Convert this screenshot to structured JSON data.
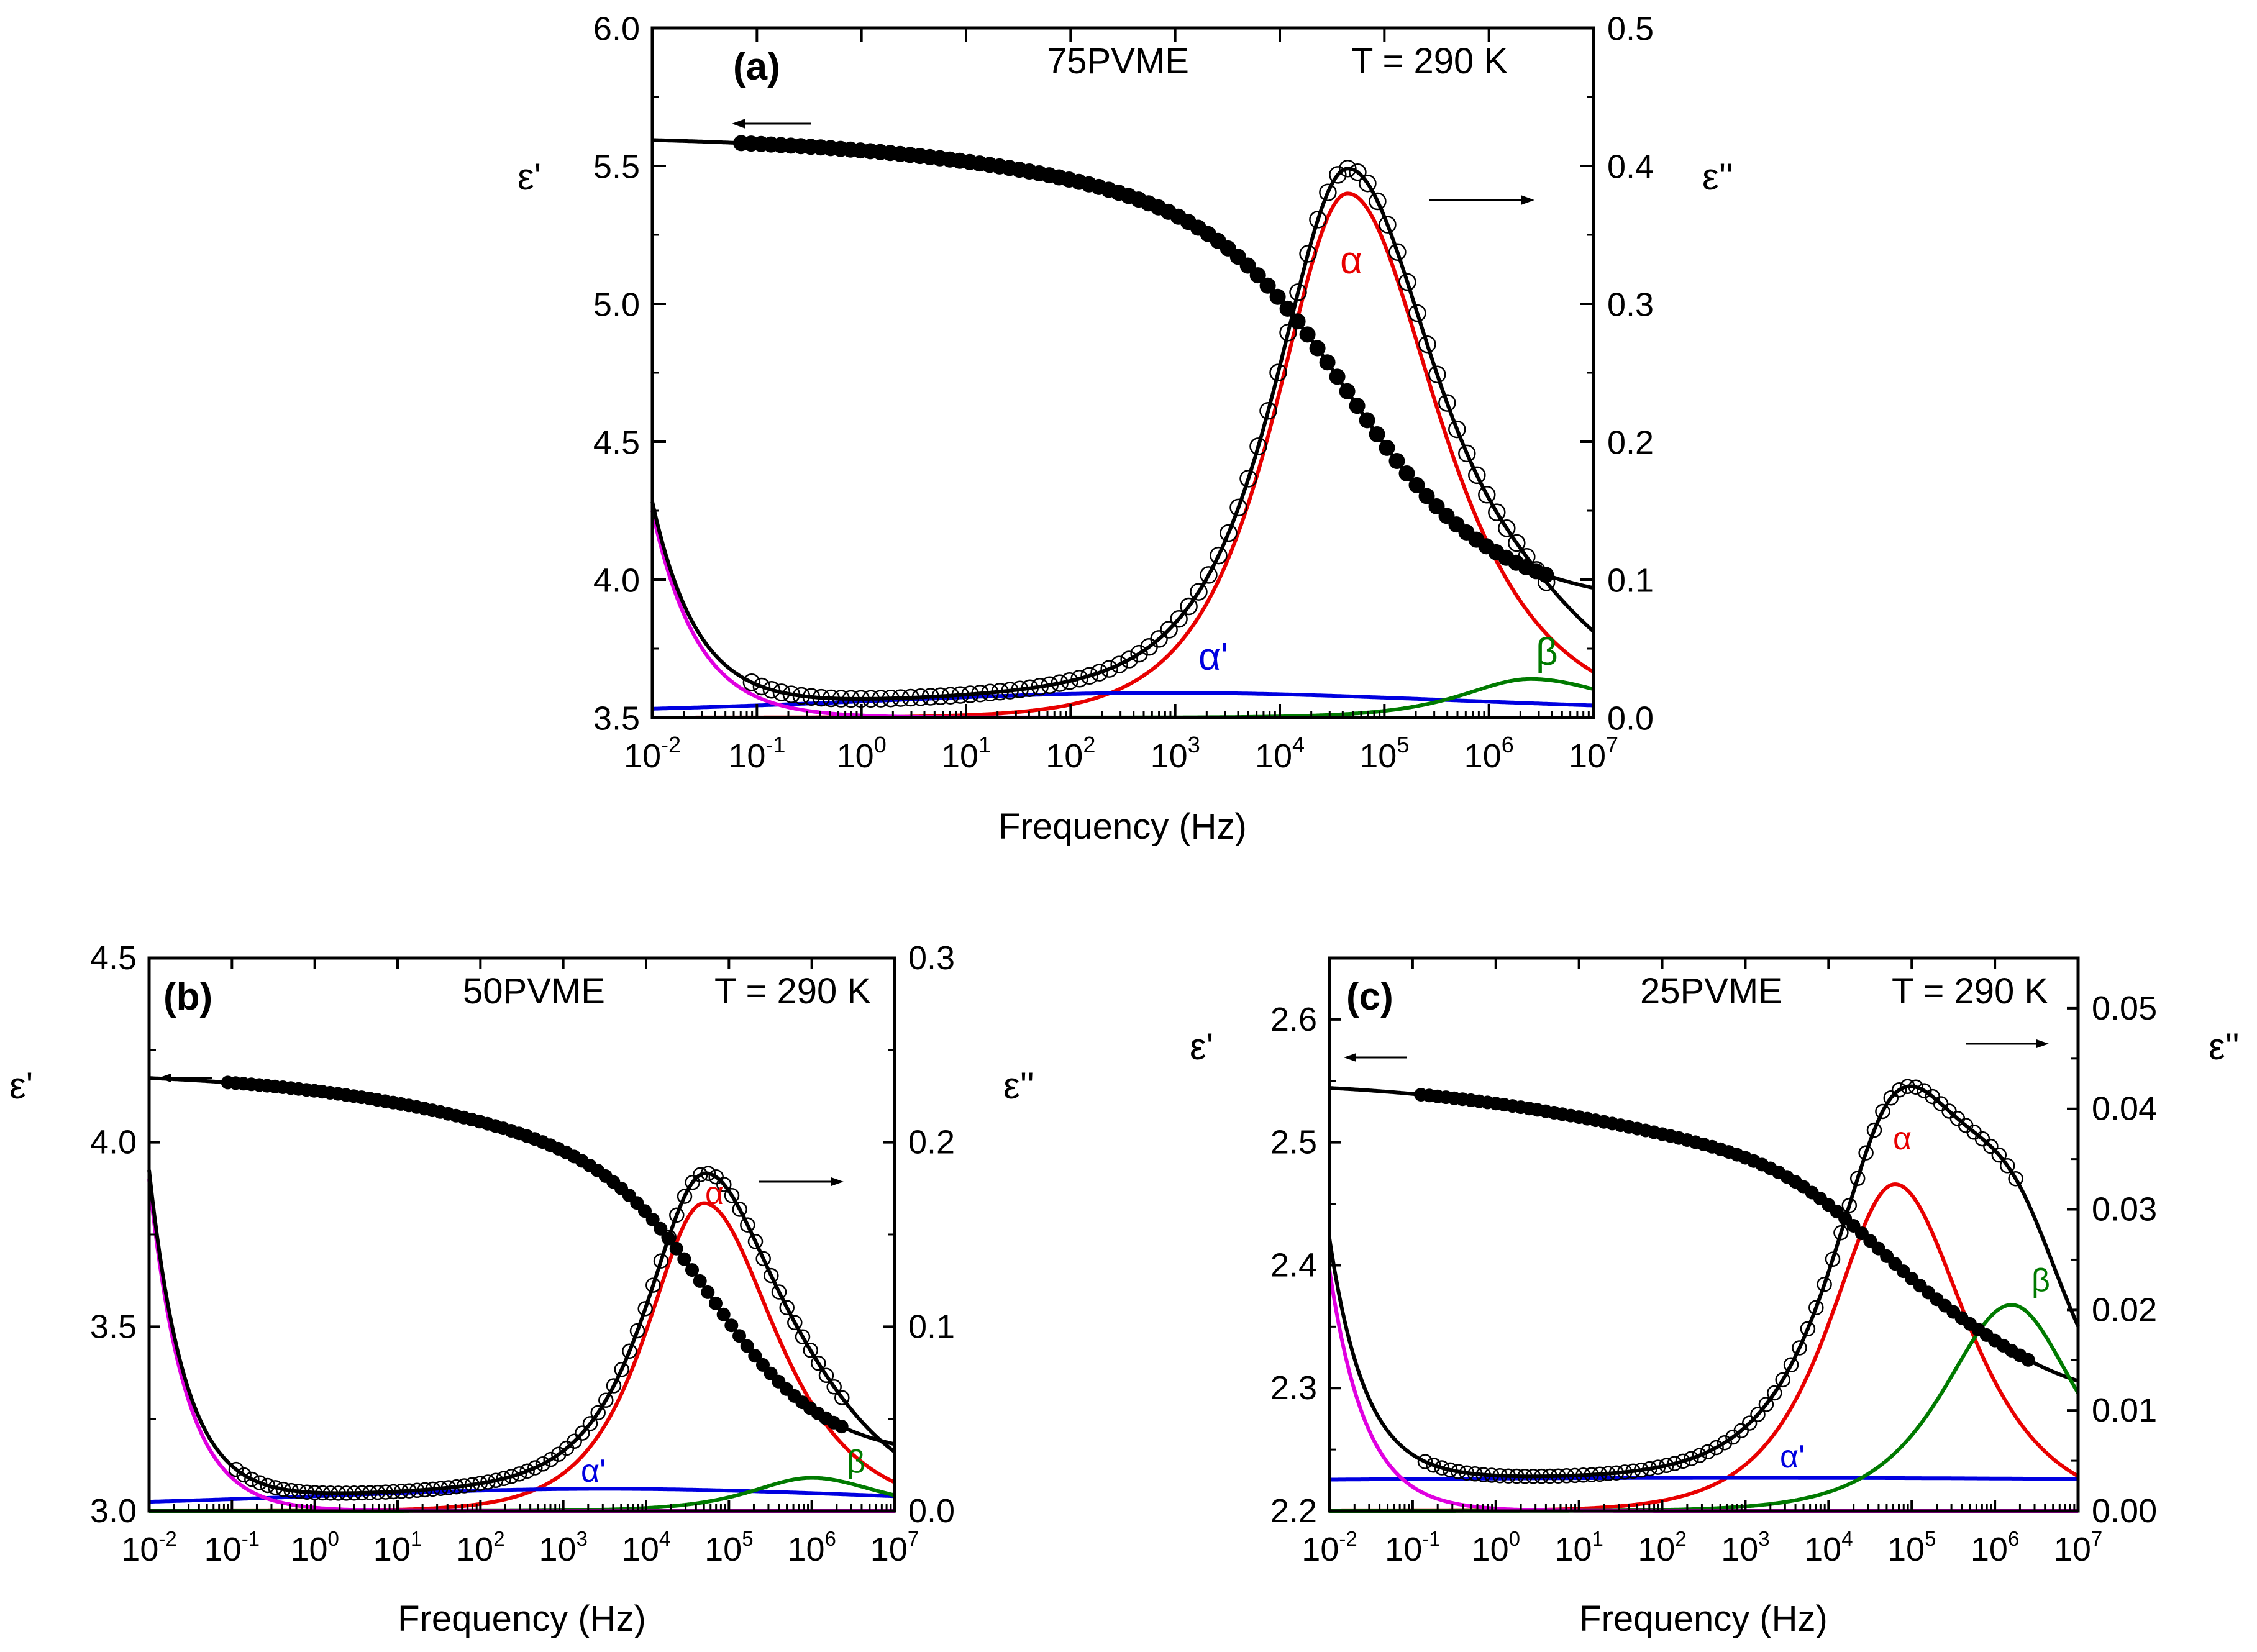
{
  "figure": {
    "xlabel": "Frequency (Hz)"
  },
  "chart_data": [
    {
      "id": "a",
      "type": "line",
      "panel_label": "(a)",
      "sample": "75PVME",
      "temperature": "T = 290 K",
      "xlabel": "Frequency (Hz)",
      "ylabel_left": "ε'",
      "ylabel_right": "ε''",
      "xscale": "log",
      "xlim_log10": [
        -2,
        7
      ],
      "x_ticks": [
        "-2",
        "-1",
        "0",
        "1",
        "2",
        "3",
        "4",
        "5",
        "6",
        "7"
      ],
      "ylim_left": [
        3.5,
        6.0
      ],
      "yticks_left": [
        "3.5",
        "4.0",
        "4.5",
        "5.0",
        "5.5",
        "6.0"
      ],
      "ylim_right": [
        0.0,
        0.5
      ],
      "yticks_right": [
        "0.0",
        "0.1",
        "0.2",
        "0.3",
        "0.4",
        "0.5"
      ],
      "colors": {
        "black": "#000000",
        "magenta": "#e000e0",
        "red": "#e80000",
        "blue": "#0000e0",
        "green": "#007a00"
      },
      "eps1_model": {
        "base": 3.9,
        "steps": [
          {
            "delta": 1.25,
            "log_tau": -4.65,
            "a": 0.7
          },
          {
            "delta": 0.4,
            "log_tau": -2.9,
            "a": 0.28
          },
          {
            "delta": 0.06,
            "log_tau": -6.4,
            "a": 0.75
          }
        ]
      },
      "eps1_points_range_log10": [
        -1.15,
        6.55
      ],
      "eps2_conductivity": {
        "A": 0.0015,
        "n": 1.0
      },
      "eps2_components": [
        {
          "name": "α",
          "amp": 0.38,
          "log_fpeak": 4.65,
          "hw_low": 0.85,
          "hw_high": 1.05,
          "color": "red"
        },
        {
          "name": "α'",
          "amp": 0.018,
          "log_fpeak": 2.9,
          "hw_low": 4.0,
          "hw_high": 4.2,
          "color": "blue"
        },
        {
          "name": "β",
          "amp": 0.028,
          "log_fpeak": 6.4,
          "hw_low": 0.8,
          "hw_high": 1.0,
          "color": "green"
        }
      ],
      "eps2_points_range_log10": [
        -1.05,
        6.55
      ],
      "labels": {
        "alpha": "α",
        "alpha_prime": "α'",
        "beta": "β"
      }
    },
    {
      "id": "b",
      "type": "line",
      "panel_label": "(b)",
      "sample": "50PVME",
      "temperature": "T = 290 K",
      "xlabel": "Frequency (Hz)",
      "ylabel_left": "ε'",
      "ylabel_right": "ε''",
      "xscale": "log",
      "xlim_log10": [
        -2,
        7
      ],
      "x_ticks": [
        "-2",
        "-1",
        "0",
        "1",
        "2",
        "3",
        "4",
        "5",
        "6",
        "7"
      ],
      "ylim_left": [
        3.0,
        4.5
      ],
      "yticks_left": [
        "3.0",
        "3.5",
        "4.0",
        "4.5"
      ],
      "ylim_right": [
        0.0,
        0.3
      ],
      "yticks_right": [
        "0.0",
        "0.1",
        "0.2",
        "0.3"
      ],
      "colors": {
        "black": "#000000",
        "magenta": "#e000e0",
        "red": "#e80000",
        "blue": "#0000e0",
        "green": "#007a00"
      },
      "eps1_model": {
        "base": 3.14,
        "steps": [
          {
            "delta": 0.7,
            "log_tau": -4.75,
            "a": 0.7
          },
          {
            "delta": 0.3,
            "log_tau": -2.5,
            "a": 0.28
          },
          {
            "delta": 0.05,
            "log_tau": -6.0,
            "a": 0.75
          }
        ]
      },
      "eps1_points_range_log10": [
        -1.05,
        6.45
      ],
      "eps2_conductivity": {
        "A": 0.0018,
        "n": 1.0
      },
      "eps2_components": [
        {
          "name": "α",
          "amp": 0.167,
          "log_fpeak": 4.7,
          "hw_low": 0.85,
          "hw_high": 1.05,
          "color": "red"
        },
        {
          "name": "α'",
          "amp": 0.012,
          "log_fpeak": 3.5,
          "hw_low": 5.0,
          "hw_high": 5.0,
          "color": "blue"
        },
        {
          "name": "β",
          "amp": 0.018,
          "log_fpeak": 6.0,
          "hw_low": 0.9,
          "hw_high": 1.0,
          "color": "green"
        }
      ],
      "eps2_points_range_log10": [
        -0.95,
        6.45
      ],
      "labels": {
        "alpha": "α",
        "alpha_prime": "α'",
        "beta": "β"
      }
    },
    {
      "id": "c",
      "type": "line",
      "panel_label": "(c)",
      "sample": "25PVME",
      "temperature": "T = 290 K",
      "xlabel": "Frequency (Hz)",
      "ylabel_left": "ε'",
      "ylabel_right": "ε''",
      "xscale": "log",
      "xlim_log10": [
        -2,
        7
      ],
      "x_ticks": [
        "-2",
        "-1",
        "0",
        "1",
        "2",
        "3",
        "4",
        "5",
        "6",
        "7"
      ],
      "ylim_left": [
        2.2,
        2.65
      ],
      "yticks_left": [
        "2.2",
        "2.3",
        "2.4",
        "2.5",
        "2.6"
      ],
      "ylim_right": [
        0.0,
        0.055
      ],
      "yticks_right": [
        "0.00",
        "0.01",
        "0.02",
        "0.03",
        "0.04",
        "0.05"
      ],
      "colors": {
        "black": "#000000",
        "magenta": "#e000e0",
        "red": "#e80000",
        "blue": "#0000e0",
        "green": "#007a00"
      },
      "eps1_model": {
        "base": 2.29,
        "steps": [
          {
            "delta": 0.13,
            "log_tau": -4.5,
            "a": 0.7
          },
          {
            "delta": 0.07,
            "log_tau": -1.5,
            "a": 0.3
          },
          {
            "delta": 0.06,
            "log_tau": -6.2,
            "a": 0.75
          }
        ]
      },
      "eps1_points_range_log10": [
        -0.9,
        6.4
      ],
      "eps2_conductivity": {
        "A": 0.00024,
        "n": 1.0
      },
      "eps2_components": [
        {
          "name": "α",
          "amp": 0.0325,
          "log_fpeak": 4.8,
          "hw_low": 0.95,
          "hw_high": 1.05,
          "color": "red"
        },
        {
          "name": "α'",
          "amp": 0.0033,
          "log_fpeak": 3.0,
          "hw_low": 20.0,
          "hw_high": 20.0,
          "color": "blue"
        },
        {
          "name": "β",
          "amp": 0.0205,
          "log_fpeak": 6.2,
          "hw_low": 1.0,
          "hw_high": 0.95,
          "color": "green"
        }
      ],
      "eps2_points_range_log10": [
        -0.85,
        6.3
      ],
      "labels": {
        "alpha": "α",
        "alpha_prime": "α'",
        "beta": "β"
      }
    }
  ]
}
